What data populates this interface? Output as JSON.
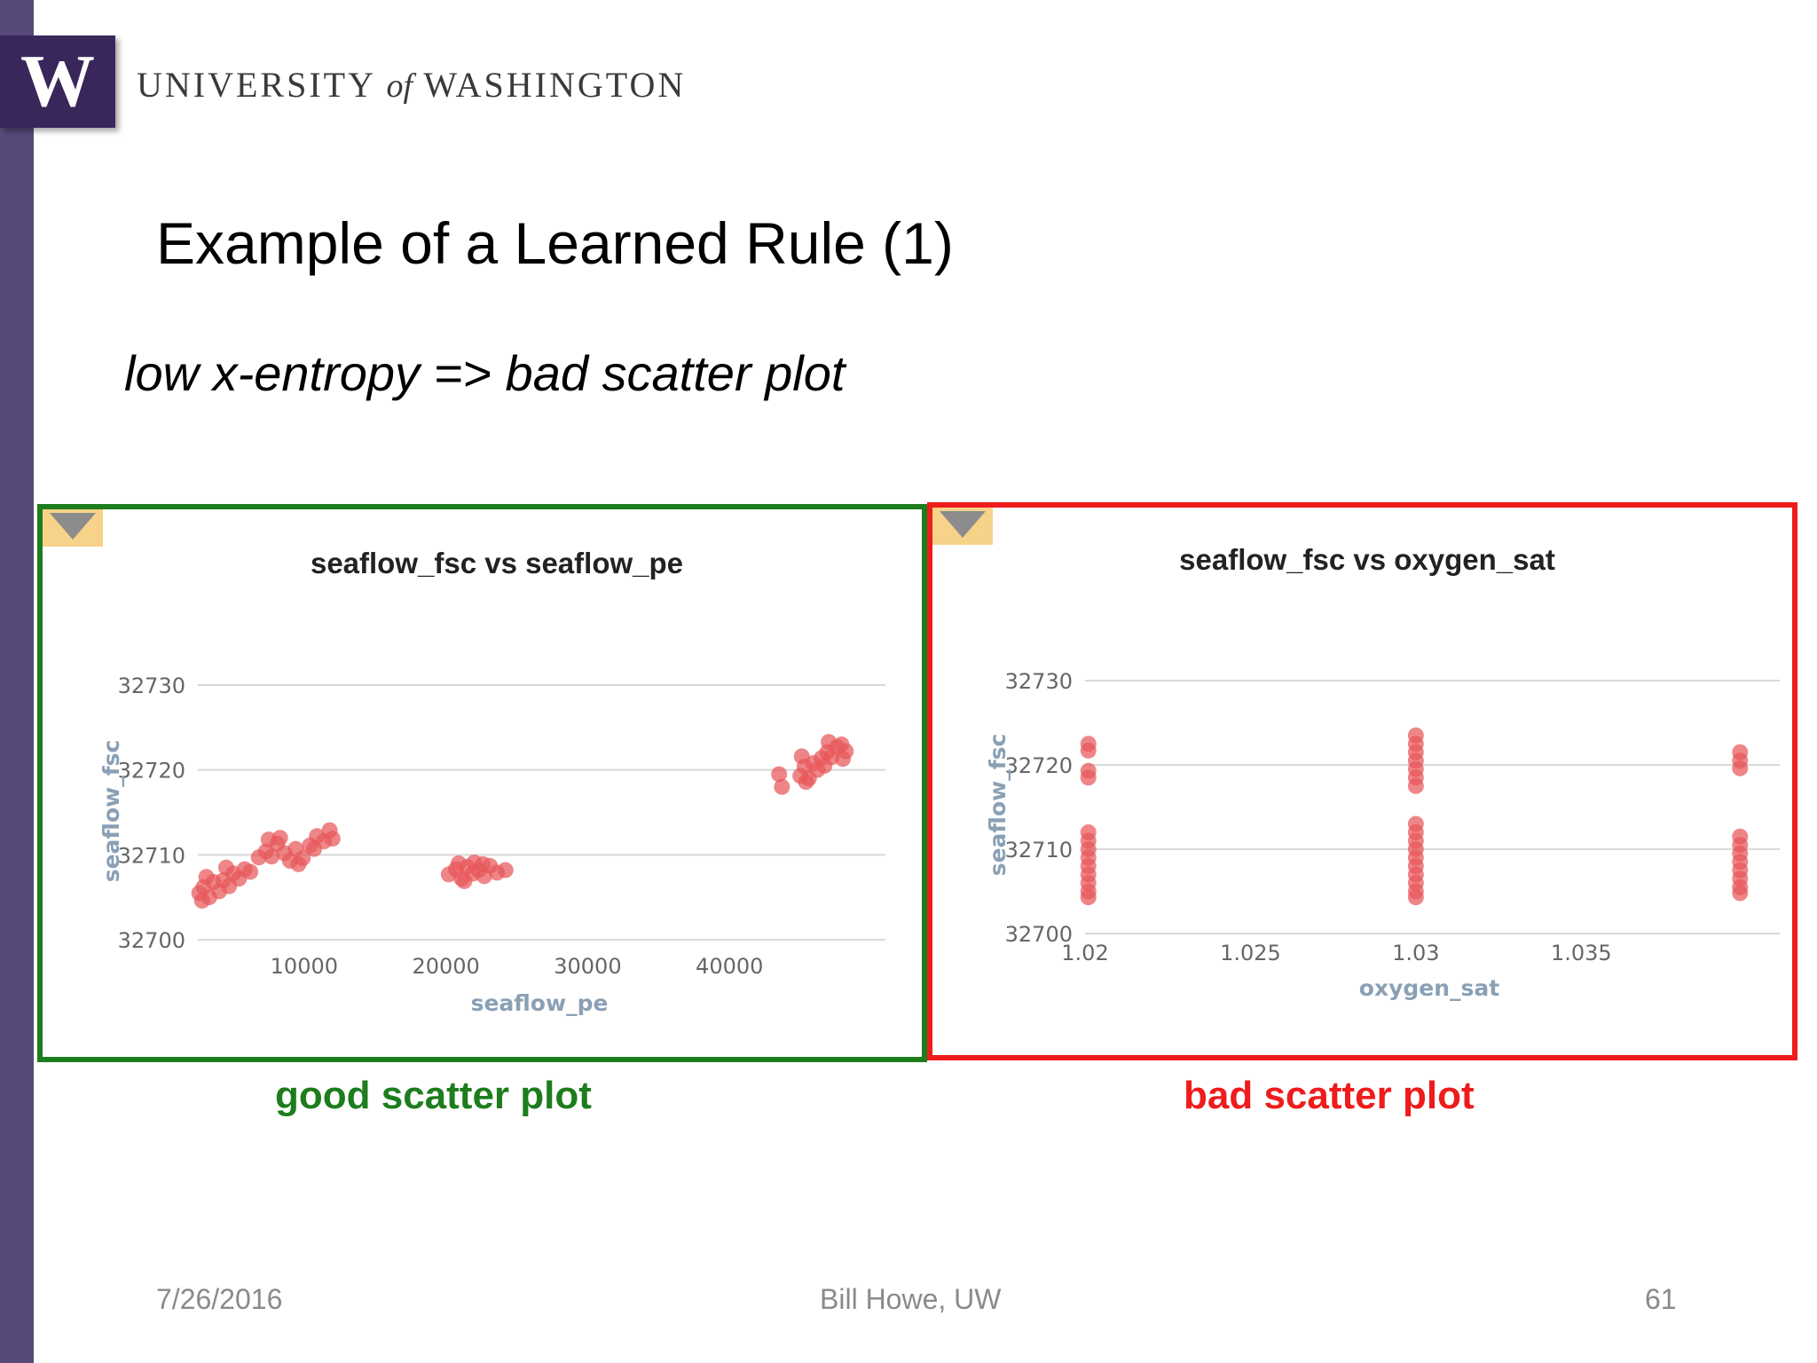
{
  "header": {
    "logo_letter": "W",
    "university_prefix": "UNIVERSITY",
    "university_of": "of",
    "university_suffix": "WASHINGTON",
    "accent_color": "#39275b",
    "sidebar_color": "#574a7a",
    "logo_icon": "uw-w-logo-icon"
  },
  "slide": {
    "title": "Example of a Learned Rule (1)",
    "rule": "low x-entropy => bad scatter plot"
  },
  "captions": {
    "good": "good scatter plot",
    "bad": "bad scatter plot",
    "good_color": "#1d7d1d",
    "bad_color": "#ee1c1c"
  },
  "footer": {
    "date": "7/26/2016",
    "author": "Bill Howe, UW",
    "page": "61"
  },
  "chart_data": [
    {
      "type": "scatter",
      "title": "seaflow_fsc vs seaflow_pe",
      "xlabel": "seaflow_pe",
      "ylabel": "seaflow_fsc",
      "xlim": [
        2500,
        51000
      ],
      "ylim": [
        32700,
        32730
      ],
      "xticks": [
        10000,
        20000,
        30000,
        40000
      ],
      "yticks": [
        32700,
        32710,
        32720,
        32730
      ],
      "grid": "horizontal",
      "marker_color": "#e8585a",
      "corner_icon": "dropdown-triangle-icon",
      "points": [
        [
          2600,
          32705.5
        ],
        [
          2900,
          32706.2
        ],
        [
          3300,
          32705.0
        ],
        [
          3600,
          32706.8
        ],
        [
          4000,
          32705.7
        ],
        [
          4300,
          32707.0
        ],
        [
          4700,
          32706.3
        ],
        [
          5000,
          32707.8
        ],
        [
          5400,
          32707.2
        ],
        [
          5800,
          32708.3
        ],
        [
          3100,
          32707.4
        ],
        [
          4500,
          32708.5
        ],
        [
          2800,
          32704.6
        ],
        [
          6200,
          32708.0
        ],
        [
          6800,
          32709.7
        ],
        [
          7300,
          32710.4
        ],
        [
          7700,
          32709.8
        ],
        [
          8100,
          32711.3
        ],
        [
          8600,
          32710.2
        ],
        [
          9000,
          32709.3
        ],
        [
          9400,
          32710.7
        ],
        [
          9900,
          32709.6
        ],
        [
          7500,
          32711.8
        ],
        [
          8300,
          32712.0
        ],
        [
          10400,
          32711.1
        ],
        [
          10900,
          32712.2
        ],
        [
          11400,
          32711.6
        ],
        [
          11800,
          32712.9
        ],
        [
          10700,
          32710.7
        ],
        [
          12000,
          32711.9
        ],
        [
          9600,
          32708.9
        ],
        [
          20200,
          32707.7
        ],
        [
          20700,
          32708.3
        ],
        [
          21100,
          32707.2
        ],
        [
          21500,
          32708.6
        ],
        [
          21900,
          32707.8
        ],
        [
          22300,
          32708.2
        ],
        [
          22700,
          32707.5
        ],
        [
          23100,
          32708.7
        ],
        [
          23600,
          32707.9
        ],
        [
          24200,
          32708.2
        ],
        [
          20900,
          32709.0
        ],
        [
          22000,
          32709.1
        ],
        [
          21300,
          32706.9
        ],
        [
          22600,
          32708.9
        ],
        [
          43500,
          32719.5
        ],
        [
          43700,
          32718.0
        ],
        [
          45000,
          32719.3
        ],
        [
          45300,
          32720.4
        ],
        [
          45600,
          32719.0
        ],
        [
          45900,
          32720.8
        ],
        [
          46200,
          32720.0
        ],
        [
          46500,
          32721.4
        ],
        [
          46900,
          32722.1
        ],
        [
          47200,
          32721.5
        ],
        [
          47600,
          32722.7
        ],
        [
          47900,
          32723.0
        ],
        [
          48200,
          32722.2
        ],
        [
          45400,
          32718.6
        ],
        [
          46700,
          32720.5
        ],
        [
          47000,
          32723.3
        ],
        [
          48000,
          32721.3
        ],
        [
          45100,
          32721.6
        ]
      ]
    },
    {
      "type": "scatter",
      "title": "seaflow_fsc vs oxygen_sat",
      "xlabel": "oxygen_sat",
      "ylabel": "seaflow_fsc",
      "xlim": [
        1.02,
        1.041
      ],
      "ylim": [
        32700,
        32730
      ],
      "xticks": [
        1.02,
        1.025,
        1.03,
        1.035
      ],
      "xtick_labels": [
        "1.02",
        "1.025",
        "1.03",
        "1.035"
      ],
      "yticks": [
        32700,
        32710,
        32720,
        32730
      ],
      "grid": "horizontal",
      "marker_color": "#e8585a",
      "corner_icon": "dropdown-triangle-icon",
      "points": [
        [
          1.0201,
          32722.5
        ],
        [
          1.0201,
          32721.7
        ],
        [
          1.0201,
          32719.3
        ],
        [
          1.0201,
          32718.5
        ],
        [
          1.0201,
          32712.0
        ],
        [
          1.0201,
          32711.0
        ],
        [
          1.0201,
          32710.0
        ],
        [
          1.0201,
          32709.0
        ],
        [
          1.0201,
          32708.0
        ],
        [
          1.0201,
          32707.0
        ],
        [
          1.0201,
          32706.0
        ],
        [
          1.0201,
          32705.0
        ],
        [
          1.0201,
          32704.3
        ],
        [
          1.03,
          32723.5
        ],
        [
          1.03,
          32722.5
        ],
        [
          1.03,
          32721.5
        ],
        [
          1.03,
          32720.5
        ],
        [
          1.03,
          32719.5
        ],
        [
          1.03,
          32718.5
        ],
        [
          1.03,
          32717.5
        ],
        [
          1.03,
          32713.0
        ],
        [
          1.03,
          32712.0
        ],
        [
          1.03,
          32711.0
        ],
        [
          1.03,
          32710.0
        ],
        [
          1.03,
          32709.0
        ],
        [
          1.03,
          32708.0
        ],
        [
          1.03,
          32707.0
        ],
        [
          1.03,
          32706.0
        ],
        [
          1.03,
          32705.0
        ],
        [
          1.03,
          32704.3
        ],
        [
          1.0398,
          32721.5
        ],
        [
          1.0398,
          32720.5
        ],
        [
          1.0398,
          32719.6
        ],
        [
          1.0398,
          32711.5
        ],
        [
          1.0398,
          32710.5
        ],
        [
          1.0398,
          32709.5
        ],
        [
          1.0398,
          32708.5
        ],
        [
          1.0398,
          32707.5
        ],
        [
          1.0398,
          32706.5
        ],
        [
          1.0398,
          32705.5
        ],
        [
          1.0398,
          32704.8
        ]
      ]
    }
  ]
}
